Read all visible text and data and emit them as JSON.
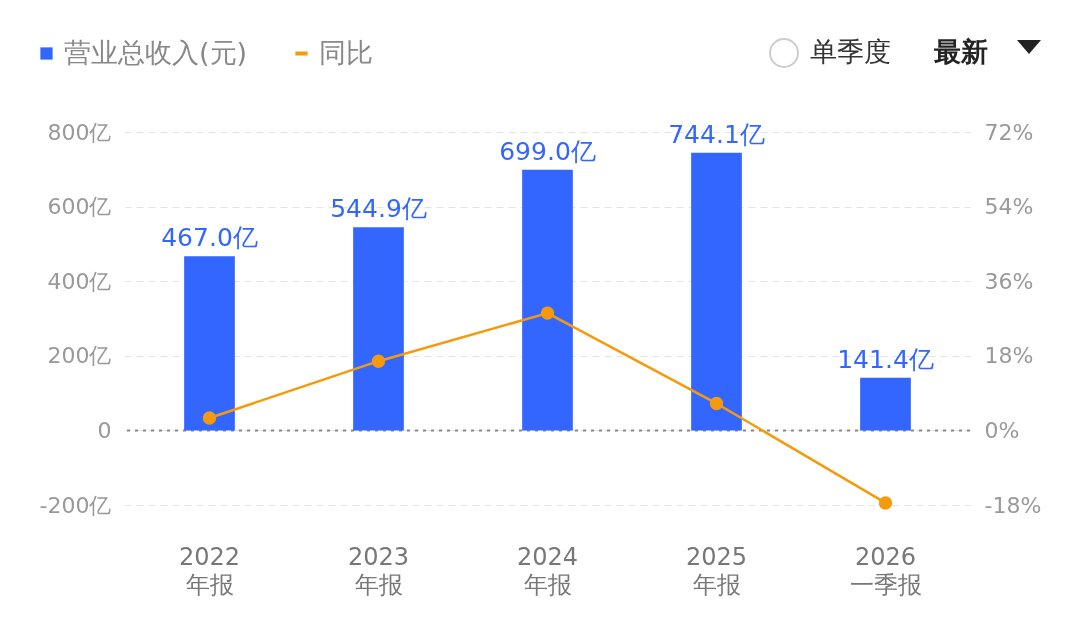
{
  "chart_data": {
    "type": "bar",
    "categories": [
      "2022\n年报",
      "2023\n年报",
      "2024\n年报",
      "2025\n年报",
      "2026\n一季报"
    ],
    "series": [
      {
        "name": "营业总收入(元)",
        "color": "#3366ff",
        "values": [
          467.0,
          544.9,
          699.0,
          744.1,
          141.4
        ],
        "value_labels": [
          "467.0亿",
          "544.9亿",
          "699.0亿",
          "744.1亿",
          "141.4亿"
        ]
      },
      {
        "name": "同比",
        "type": "line",
        "axis": "y2",
        "color": "#f59a0c",
        "values": [
          3.0,
          16.7,
          28.3,
          6.5,
          -17.5
        ]
      }
    ],
    "ylim": [
      -200,
      800
    ],
    "yticks": [
      {
        "value": -200,
        "label": "-200亿"
      },
      {
        "value": 0,
        "label": "0"
      },
      {
        "value": 200,
        "label": "200亿"
      },
      {
        "value": 400,
        "label": "400亿"
      },
      {
        "value": 600,
        "label": "600亿"
      },
      {
        "value": 800,
        "label": "800亿"
      }
    ],
    "y2lim": [
      -18,
      72
    ],
    "y2ticks": [
      {
        "value": -18,
        "label": "-18%"
      },
      {
        "value": 0,
        "label": "0%"
      },
      {
        "value": 18,
        "label": "18%"
      },
      {
        "value": 36,
        "label": "36%"
      },
      {
        "value": 54,
        "label": "54%"
      },
      {
        "value": 72,
        "label": "72%"
      }
    ],
    "ref_lines": [
      {
        "axis": "y",
        "value": 0,
        "color": "#888888",
        "line_style": "dotted"
      }
    ],
    "grid": "y",
    "legend": "top left",
    "marker": "circle",
    "annotations": [
      "单季度",
      "最新"
    ]
  }
}
